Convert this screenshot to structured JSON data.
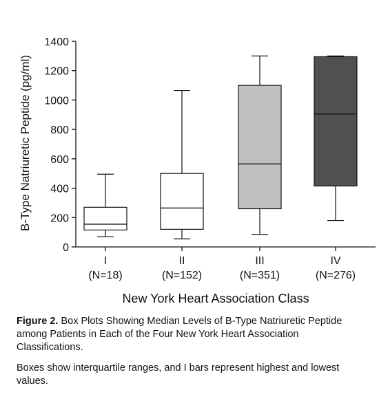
{
  "chart_data": {
    "type": "box",
    "title": "",
    "xlabel": "New York Heart Association Class",
    "ylabel": "B-Type Natriuretic Peptide (pg/ml)",
    "ylim": [
      0,
      1400
    ],
    "yticks": [
      0,
      200,
      400,
      600,
      800,
      1000,
      1200,
      1400
    ],
    "grid": false,
    "categories": [
      "I",
      "II",
      "III",
      "IV"
    ],
    "sample_sizes": [
      "(N=18)",
      "(N=152)",
      "(N=351)",
      "(N=276)"
    ],
    "boxes": [
      {
        "category": "I",
        "min": 70,
        "q1": 115,
        "median": 155,
        "q3": 270,
        "max": 495,
        "fill": "#ffffff"
      },
      {
        "category": "II",
        "min": 55,
        "q1": 120,
        "median": 265,
        "q3": 500,
        "max": 1065,
        "fill": "#ffffff"
      },
      {
        "category": "III",
        "min": 85,
        "q1": 260,
        "median": 565,
        "q3": 1100,
        "max": 1300,
        "fill": "#c0c0c0"
      },
      {
        "category": "IV",
        "min": 180,
        "q1": 415,
        "median": 905,
        "q3": 1295,
        "max": 1300,
        "fill": "#505050"
      }
    ]
  },
  "caption": {
    "figure_label": "Figure 2.",
    "title_text": " Box Plots Showing Median Levels of B-Type Natriuretic Peptide among Patients in Each of the Four New York Heart Association Classifications.",
    "note": "Boxes show interquartile ranges, and I bars represent highest and lowest values."
  }
}
